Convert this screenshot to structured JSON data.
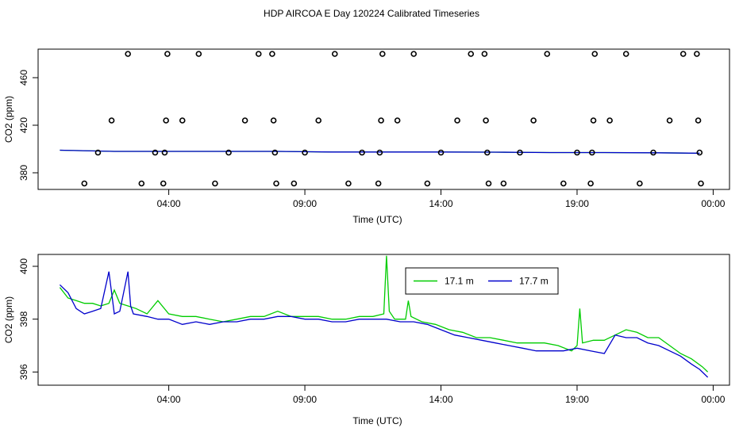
{
  "title": "HDP AIRCOA E  Day 120224  Calibrated Timeseries",
  "colors": {
    "green": "#00cc00",
    "blue": "#0000cc",
    "frame": "#000000"
  },
  "chart_data": [
    {
      "type": "scatter",
      "xlabel": "Time (UTC)",
      "ylabel": "CO2 (ppm)",
      "xlim": [
        -0.8,
        24.6
      ],
      "ylim": [
        366,
        484
      ],
      "x_ticks": [
        {
          "value": 4,
          "label": "04:00"
        },
        {
          "value": 9,
          "label": "09:00"
        },
        {
          "value": 14,
          "label": "14:00"
        },
        {
          "value": 19,
          "label": "19:00"
        },
        {
          "value": 24,
          "label": "00:00"
        }
      ],
      "y_ticks": [
        380,
        420,
        460
      ],
      "y_tick_labels": [
        "380",
        "420",
        "460"
      ],
      "markers": [
        {
          "x": 0.9,
          "y": 371
        },
        {
          "x": 1.4,
          "y": 397
        },
        {
          "x": 1.9,
          "y": 424
        },
        {
          "x": 2.5,
          "y": 480
        },
        {
          "x": 3.0,
          "y": 371
        },
        {
          "x": 3.5,
          "y": 397
        },
        {
          "x": 3.8,
          "y": 371
        },
        {
          "x": 3.85,
          "y": 397
        },
        {
          "x": 3.9,
          "y": 424
        },
        {
          "x": 3.95,
          "y": 480
        },
        {
          "x": 4.5,
          "y": 424
        },
        {
          "x": 5.1,
          "y": 480
        },
        {
          "x": 5.7,
          "y": 371
        },
        {
          "x": 6.2,
          "y": 397
        },
        {
          "x": 6.8,
          "y": 424
        },
        {
          "x": 7.3,
          "y": 480
        },
        {
          "x": 7.8,
          "y": 480
        },
        {
          "x": 7.85,
          "y": 424
        },
        {
          "x": 7.9,
          "y": 397
        },
        {
          "x": 7.95,
          "y": 371
        },
        {
          "x": 8.6,
          "y": 371
        },
        {
          "x": 9.0,
          "y": 397
        },
        {
          "x": 9.5,
          "y": 424
        },
        {
          "x": 10.1,
          "y": 480
        },
        {
          "x": 10.6,
          "y": 371
        },
        {
          "x": 11.1,
          "y": 397
        },
        {
          "x": 11.7,
          "y": 371
        },
        {
          "x": 11.75,
          "y": 397
        },
        {
          "x": 11.8,
          "y": 424
        },
        {
          "x": 11.85,
          "y": 480
        },
        {
          "x": 12.4,
          "y": 424
        },
        {
          "x": 13.0,
          "y": 480
        },
        {
          "x": 13.5,
          "y": 371
        },
        {
          "x": 14.0,
          "y": 397
        },
        {
          "x": 14.6,
          "y": 424
        },
        {
          "x": 15.1,
          "y": 480
        },
        {
          "x": 15.6,
          "y": 480
        },
        {
          "x": 15.65,
          "y": 424
        },
        {
          "x": 15.7,
          "y": 397
        },
        {
          "x": 15.75,
          "y": 371
        },
        {
          "x": 16.3,
          "y": 371
        },
        {
          "x": 16.9,
          "y": 397
        },
        {
          "x": 17.4,
          "y": 424
        },
        {
          "x": 17.9,
          "y": 480
        },
        {
          "x": 18.5,
          "y": 371
        },
        {
          "x": 19.0,
          "y": 397
        },
        {
          "x": 19.5,
          "y": 371
        },
        {
          "x": 19.55,
          "y": 397
        },
        {
          "x": 19.6,
          "y": 424
        },
        {
          "x": 19.65,
          "y": 480
        },
        {
          "x": 20.2,
          "y": 424
        },
        {
          "x": 20.8,
          "y": 480
        },
        {
          "x": 21.3,
          "y": 371
        },
        {
          "x": 21.8,
          "y": 397
        },
        {
          "x": 22.4,
          "y": 424
        },
        {
          "x": 22.9,
          "y": 480
        },
        {
          "x": 23.4,
          "y": 480
        },
        {
          "x": 23.45,
          "y": 424
        },
        {
          "x": 23.5,
          "y": 397
        },
        {
          "x": 23.55,
          "y": 371
        }
      ],
      "series": [
        {
          "color": "green",
          "x": [
            0,
            2,
            4,
            6,
            8,
            10,
            12,
            14,
            16,
            18,
            20,
            22,
            23.5
          ],
          "values": [
            399,
            398,
            398,
            398,
            398,
            397.5,
            397.5,
            397.5,
            397.3,
            397,
            397,
            396.8,
            396.5
          ]
        },
        {
          "color": "blue",
          "x": [
            0,
            2,
            4,
            6,
            8,
            10,
            12,
            14,
            16,
            18,
            20,
            22,
            23.5
          ],
          "values": [
            399,
            398,
            398,
            398,
            398,
            397.5,
            397.5,
            397.5,
            397.3,
            397,
            397,
            396.8,
            396.5
          ]
        }
      ]
    },
    {
      "type": "line",
      "xlabel": "Time (UTC)",
      "ylabel": "CO2 (ppm)",
      "xlim": [
        -0.8,
        24.6
      ],
      "ylim": [
        395.5,
        400.45
      ],
      "x_ticks": [
        {
          "value": 4,
          "label": "04:00"
        },
        {
          "value": 9,
          "label": "09:00"
        },
        {
          "value": 14,
          "label": "14:00"
        },
        {
          "value": 19,
          "label": "19:00"
        },
        {
          "value": 24,
          "label": "00:00"
        }
      ],
      "y_ticks": [
        396,
        398,
        400
      ],
      "y_tick_labels": [
        "396",
        "398",
        "400"
      ],
      "legend": {
        "position": "top-center",
        "entries": [
          {
            "label": "17.1 m",
            "color": "green"
          },
          {
            "label": "17.7 m",
            "color": "blue"
          }
        ]
      },
      "series": [
        {
          "name": "17.1 m",
          "color": "green",
          "x": [
            0,
            0.3,
            0.6,
            0.9,
            1.2,
            1.5,
            1.8,
            2.0,
            2.2,
            2.5,
            2.8,
            3.2,
            3.6,
            4.0,
            4.5,
            5.0,
            5.5,
            6.0,
            6.5,
            7.0,
            7.5,
            8.0,
            8.5,
            9.0,
            9.5,
            10.0,
            10.5,
            11.0,
            11.5,
            11.9,
            12.0,
            12.1,
            12.3,
            12.7,
            12.8,
            12.9,
            13.3,
            13.8,
            14.3,
            14.8,
            15.3,
            15.8,
            16.3,
            16.8,
            17.3,
            17.8,
            18.3,
            18.8,
            19.0,
            19.1,
            19.2,
            19.6,
            20.0,
            20.4,
            20.8,
            21.2,
            21.6,
            22.0,
            22.4,
            22.8,
            23.2,
            23.6,
            23.8
          ],
          "values": [
            399.2,
            398.8,
            398.7,
            398.6,
            398.6,
            398.5,
            398.6,
            399.1,
            398.6,
            398.5,
            398.4,
            398.2,
            398.7,
            398.2,
            398.1,
            398.1,
            398.0,
            397.9,
            398.0,
            398.1,
            398.1,
            398.3,
            398.1,
            398.1,
            398.1,
            398.0,
            398.0,
            398.1,
            398.1,
            398.2,
            400.4,
            398.3,
            398.0,
            398.0,
            398.7,
            398.1,
            397.9,
            397.8,
            397.6,
            397.5,
            397.3,
            397.3,
            397.2,
            397.1,
            397.1,
            397.1,
            397.0,
            396.8,
            397.0,
            398.4,
            397.1,
            397.2,
            397.2,
            397.4,
            397.6,
            397.5,
            397.3,
            397.3,
            397.0,
            396.7,
            396.5,
            396.2,
            396.0
          ]
        },
        {
          "name": "17.7 m",
          "color": "blue",
          "x": [
            0,
            0.3,
            0.6,
            0.9,
            1.2,
            1.5,
            1.8,
            2.0,
            2.2,
            2.5,
            2.6,
            2.7,
            3.2,
            3.6,
            4.0,
            4.5,
            5.0,
            5.5,
            6.0,
            6.5,
            7.0,
            7.5,
            8.0,
            8.5,
            9.0,
            9.5,
            10.0,
            10.5,
            11.0,
            11.5,
            12.0,
            12.5,
            13.0,
            13.5,
            14.0,
            14.5,
            15.0,
            15.5,
            16.0,
            16.5,
            17.0,
            17.5,
            18.0,
            18.5,
            19.0,
            19.5,
            20.0,
            20.4,
            20.8,
            21.2,
            21.6,
            22.0,
            22.4,
            22.8,
            23.2,
            23.5,
            23.8
          ],
          "values": [
            399.3,
            399.0,
            398.4,
            398.2,
            398.3,
            398.4,
            399.8,
            398.2,
            398.3,
            399.8,
            398.5,
            398.2,
            398.1,
            398.0,
            398.0,
            397.8,
            397.9,
            397.8,
            397.9,
            397.9,
            398.0,
            398.0,
            398.1,
            398.1,
            398.0,
            398.0,
            397.9,
            397.9,
            398.0,
            398.0,
            398.0,
            397.9,
            397.9,
            397.8,
            397.6,
            397.4,
            397.3,
            397.2,
            397.1,
            397.0,
            396.9,
            396.8,
            396.8,
            396.8,
            396.9,
            396.8,
            396.7,
            397.4,
            397.3,
            397.3,
            397.1,
            397.0,
            396.8,
            396.6,
            396.3,
            396.1,
            395.8
          ]
        }
      ]
    }
  ]
}
